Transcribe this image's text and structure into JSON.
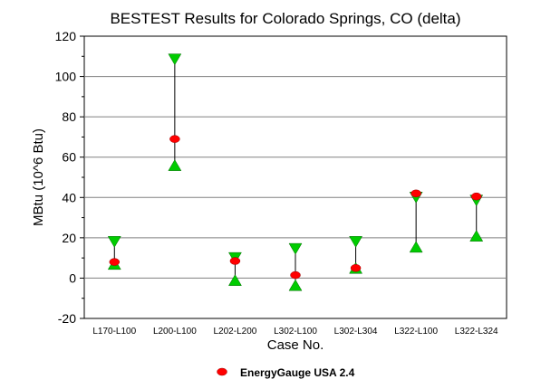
{
  "chart_data": {
    "type": "scatter",
    "title": "BESTEST Results for Colorado Springs, CO (delta)",
    "xlabel": "Case No.",
    "ylabel": "MBtu (10^6 Btu)",
    "ylim": [
      -20,
      120
    ],
    "yticks": [
      -20,
      0,
      20,
      40,
      60,
      80,
      100,
      120
    ],
    "grid": "horizontal",
    "categories": [
      "L170-L100",
      "L200-L100",
      "L202-L200",
      "L302-L100",
      "L302-L304",
      "L322-L100",
      "L322-L324"
    ],
    "range_max": [
      18,
      108.5,
      10,
      14.5,
      18,
      40,
      38.5
    ],
    "range_min": [
      7,
      56,
      -1,
      -3.5,
      5,
      15.5,
      21
    ],
    "series": [
      {
        "name": "EnergyGauge USA 2.4",
        "values": [
          8,
          69,
          8.5,
          1.5,
          5,
          42,
          40.5
        ],
        "color": "#ff0000"
      }
    ],
    "range_marker_color": "#00cc00",
    "legend": "bottom-center"
  }
}
